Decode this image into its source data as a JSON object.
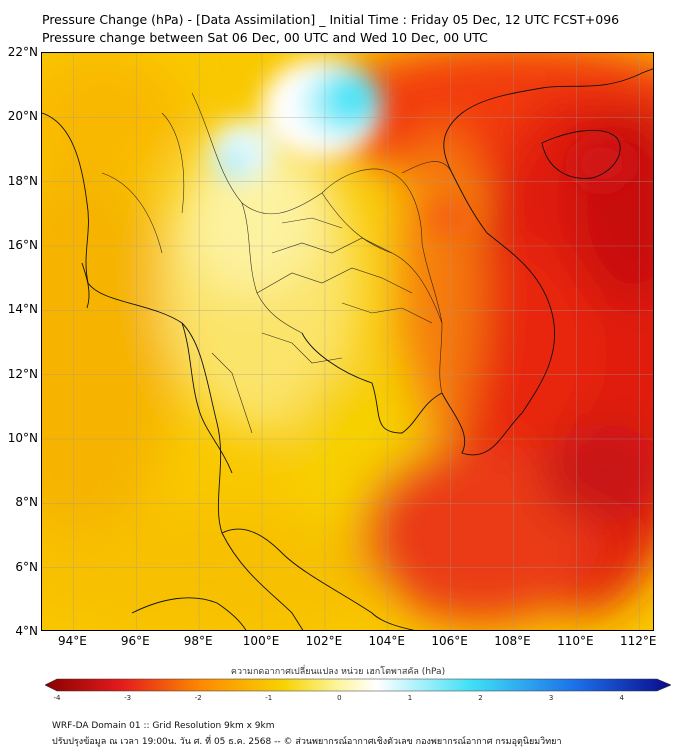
{
  "title": {
    "line1": "Pressure Change (hPa) - [Data Assimilation] _ Initial Time : Friday 05 Dec, 12 UTC FCST+096",
    "line2": "Pressure change between Sat 06 Dec, 00 UTC and Wed 10 Dec, 00 UTC"
  },
  "map": {
    "lon_range": [
      93,
      112.5
    ],
    "lat_range": [
      4,
      22
    ],
    "lon_labels": [
      "94°E",
      "96°E",
      "98°E",
      "100°E",
      "102°E",
      "104°E",
      "106°E",
      "108°E",
      "110°E",
      "112°E"
    ],
    "lat_labels": [
      "22°N",
      "20°N",
      "18°N",
      "16°N",
      "14°N",
      "12°N",
      "10°N",
      "8°N",
      "6°N",
      "4°N"
    ],
    "lon_values": [
      94,
      96,
      98,
      100,
      102,
      104,
      106,
      108,
      110,
      112
    ],
    "lat_values": [
      22,
      20,
      18,
      16,
      14,
      12,
      10,
      8,
      6,
      4
    ]
  },
  "colorbar": {
    "title": "ความกดอากาศเปลี่ยนแปลง หน่วย เฮกโตพาสคัล (hPa)",
    "ticks": [
      "-4",
      "-3",
      "-2",
      "-1",
      "0",
      "1",
      "2",
      "3",
      "4"
    ],
    "tick_values": [
      -4,
      -3,
      -2,
      -1,
      0,
      1,
      2,
      3,
      4
    ],
    "range": [
      -4,
      4.5
    ],
    "colors": {
      "dark_red": "#8b0000",
      "red": "#e31a1c",
      "orange": "#fe8a00",
      "yellow": "#f7d200",
      "pale_yellow": "#fcf6a0",
      "white": "#ffffff",
      "cyan": "#40e0f5",
      "blue": "#1c6ee8",
      "dark_blue": "#0a0a8c"
    }
  },
  "footer": {
    "line1": "WRF-DA Domain 01 :: Grid Resolution 9km x 9km",
    "line2": "ปรับปรุงข้อมูล ณ เวลา 19:00น. วัน ศ. ที่ 05 ธ.ค. 2568 -- © ส่วนพยากรณ์อากาศเชิงตัวเลข กองพยากรณ์อากาศ กรมอุตุนิยมวิทยา"
  }
}
